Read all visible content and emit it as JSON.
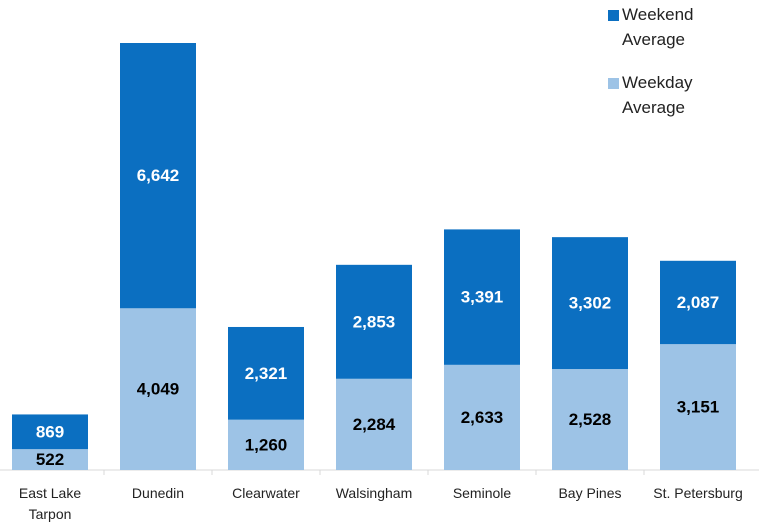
{
  "chart_data": {
    "type": "stacked_bar",
    "categories": [
      "East Lake Tarpon",
      "Dunedin",
      "Clearwater",
      "Walsingham",
      "Seminole",
      "Bay Pines",
      "St. Petersburg"
    ],
    "series": [
      {
        "name": "Weekday Average",
        "color": "#9dc3e6",
        "values": [
          522,
          4049,
          1260,
          2284,
          2633,
          2528,
          3151
        ],
        "value_labels": [
          "522",
          "4,049",
          "1,260",
          "2,284",
          "2,633",
          "2,528",
          "3,151"
        ]
      },
      {
        "name": "Weekend Average",
        "color": "#0b6fc1",
        "values": [
          869,
          6642,
          2321,
          2853,
          3391,
          3302,
          2087
        ],
        "value_labels": [
          "869",
          "6,642",
          "2,321",
          "2,853",
          "3,391",
          "3,302",
          "2,087"
        ]
      }
    ]
  }
}
